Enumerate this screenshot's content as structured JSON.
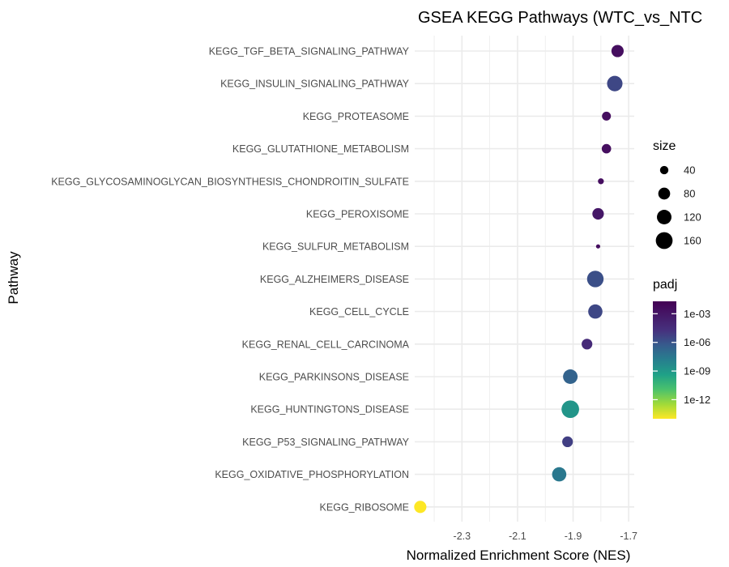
{
  "chart_data": {
    "type": "scatter",
    "title": "GSEA KEGG Pathways (WTC_vs_NTC",
    "xlabel": "Normalized Enrichment Score (NES)",
    "ylabel": "Pathway",
    "xlim": [
      -2.47,
      -1.68
    ],
    "x_ticks": [
      {
        "value": -2.3,
        "label": "-2.3"
      },
      {
        "value": -2.1,
        "label": "-2.1"
      },
      {
        "value": -1.9,
        "label": "-1.9"
      },
      {
        "value": -1.7,
        "label": "-1.7"
      }
    ],
    "grid": true,
    "legend_position": "right",
    "points": [
      {
        "pathway": "KEGG_TGF_BETA_SIGNALING_PATHWAY",
        "nes": -1.74,
        "size": 85,
        "padj": 0.008
      },
      {
        "pathway": "KEGG_INSULIN_SIGNALING_PATHWAY",
        "nes": -1.75,
        "size": 135,
        "padj": 0.0001
      },
      {
        "pathway": "KEGG_PROTEASOME",
        "nes": -1.78,
        "size": 45,
        "padj": 0.008
      },
      {
        "pathway": "KEGG_GLUTATHIONE_METABOLISM",
        "nes": -1.78,
        "size": 50,
        "padj": 0.008
      },
      {
        "pathway": "KEGG_GLYCOSAMINOGLYCAN_BIOSYNTHESIS_CHONDROITIN_SULFATE",
        "nes": -1.8,
        "size": 20,
        "padj": 0.008
      },
      {
        "pathway": "KEGG_PEROXISOME",
        "nes": -1.81,
        "size": 75,
        "padj": 0.004
      },
      {
        "pathway": "KEGG_SULFUR_METABOLISM",
        "nes": -1.81,
        "size": 8,
        "padj": 0.008
      },
      {
        "pathway": "KEGG_ALZHEIMERS_DISEASE",
        "nes": -1.82,
        "size": 155,
        "padj": 5e-05
      },
      {
        "pathway": "KEGG_CELL_CYCLE",
        "nes": -1.82,
        "size": 115,
        "padj": 0.0001
      },
      {
        "pathway": "KEGG_RENAL_CELL_CARCINOMA",
        "nes": -1.85,
        "size": 65,
        "padj": 0.001
      },
      {
        "pathway": "KEGG_PARKINSONS_DISEASE",
        "nes": -1.91,
        "size": 120,
        "padj": 8e-06
      },
      {
        "pathway": "KEGG_HUNTINGTONS_DISEASE",
        "nes": -1.91,
        "size": 175,
        "padj": 5e-08
      },
      {
        "pathway": "KEGG_P53_SIGNALING_PATHWAY",
        "nes": -1.92,
        "size": 65,
        "padj": 0.0002
      },
      {
        "pathway": "KEGG_OXIDATIVE_PHOSPHORYLATION",
        "nes": -1.95,
        "size": 115,
        "padj": 1e-06
      },
      {
        "pathway": "KEGG_RIBOSOME",
        "nes": -2.45,
        "size": 85,
        "padj": 1e-14
      }
    ],
    "size_legend": {
      "title": "size",
      "entries": [
        {
          "value": 40,
          "label": "40"
        },
        {
          "value": 80,
          "label": "80"
        },
        {
          "value": 120,
          "label": "120"
        },
        {
          "value": 160,
          "label": "160"
        }
      ]
    },
    "color_legend": {
      "title": "padj",
      "colormap": "viridis",
      "scale": "log10",
      "range": [
        1e-14,
        0.02
      ],
      "ticks": [
        {
          "value": 0.001,
          "label": "1e-03"
        },
        {
          "value": 1e-06,
          "label": "1e-06"
        },
        {
          "value": 1e-09,
          "label": "1e-09"
        },
        {
          "value": 1e-12,
          "label": "1e-12"
        }
      ]
    },
    "colors": {
      "background": "#ffffff",
      "gridline": "#ebebeb",
      "tick_text": "#4d4d4d",
      "legend_point": "#000000"
    }
  }
}
